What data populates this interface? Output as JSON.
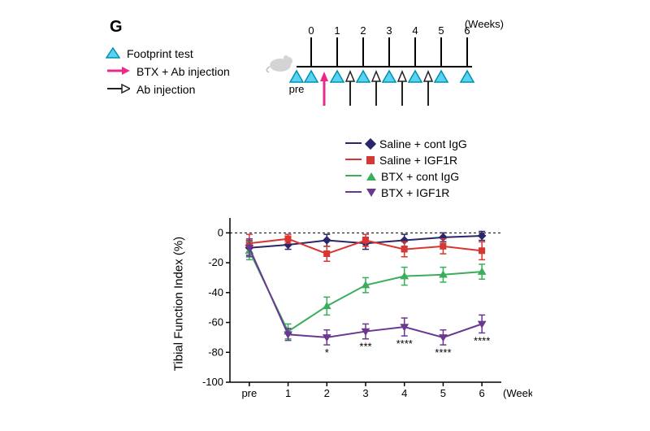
{
  "panel": {
    "label": "G",
    "fontsize": 20
  },
  "top_legend": {
    "rows": [
      {
        "icon": "triangle",
        "fill": "#5ad3f0",
        "stroke": "#0092b4",
        "text": "Footprint test"
      },
      {
        "icon": "arrow",
        "fill": "#ea2a8a",
        "stroke": "#ea2a8a",
        "text": "BTX + Ab injection"
      },
      {
        "icon": "arrow",
        "fill": "#ffffff",
        "stroke": "#222222",
        "text": "Ab injection"
      }
    ]
  },
  "timeline": {
    "weeks_label": "(Weeks)",
    "x": [
      0,
      1,
      2,
      3,
      4,
      5,
      6
    ],
    "tick_labels": [
      "0",
      "1",
      "2",
      "3",
      "4",
      "5",
      "6"
    ],
    "pre_label": "pre",
    "footprint_idx": [
      -1,
      0,
      1,
      2,
      3,
      4,
      5,
      6
    ],
    "btx_ab_idx": [
      0.5
    ],
    "ab_idx": [
      1.5,
      2.5,
      3.5,
      4.5
    ]
  },
  "series_legend": [
    {
      "marker": "diamond",
      "color": "#29266a",
      "label": "Saline + cont IgG"
    },
    {
      "marker": "square",
      "color": "#d83631",
      "label": "Saline + IGF1R"
    },
    {
      "marker": "tri_up",
      "color": "#3aae5a",
      "label": "BTX + cont IgG"
    },
    {
      "marker": "tri_down",
      "color": "#6a3890",
      "label": "BTX + IGF1R"
    }
  ],
  "chart": {
    "type": "line",
    "background_color": "#ffffff",
    "axis_color": "#000000",
    "tick_fontsize": 13,
    "label_fontsize": 15,
    "line_width": 2,
    "marker_size": 7,
    "error_cap": 4,
    "ylim": [
      -100,
      10
    ],
    "ytick_step": 20,
    "ytick_labels": [
      "0",
      "-20",
      "-40",
      "-60",
      "-80",
      "-100"
    ],
    "yticks": [
      0,
      -20,
      -40,
      -60,
      -80,
      -100
    ],
    "x_categories": [
      "pre",
      "1",
      "2",
      "3",
      "4",
      "5",
      "6"
    ],
    "x_label": "(Weeks)",
    "y_label": "Tibial Function Index (%)",
    "zero_line": {
      "color": "#000000",
      "dash": "3,3"
    },
    "series": [
      {
        "name": "Saline + cont IgG",
        "color": "#29266a",
        "marker": "diamond",
        "y": [
          -10,
          -8,
          -5,
          -7,
          -5,
          -3,
          -2
        ],
        "err": [
          5,
          3,
          4,
          4,
          4,
          3,
          3
        ]
      },
      {
        "name": "Saline + IGF1R",
        "color": "#d83631",
        "marker": "square",
        "y": [
          -7,
          -4,
          -14,
          -5,
          -11,
          -9,
          -12
        ],
        "err": [
          6,
          3,
          5,
          4,
          5,
          5,
          6
        ]
      },
      {
        "name": "BTX + cont IgG",
        "color": "#3aae5a",
        "marker": "tri_up",
        "y": [
          -12,
          -66,
          -49,
          -35,
          -29,
          -28,
          -26
        ],
        "err": [
          6,
          5,
          6,
          5,
          6,
          5,
          5
        ]
      },
      {
        "name": "BTX + IGF1R",
        "color": "#6a3890",
        "marker": "tri_down",
        "y": [
          -10,
          -68,
          -70,
          -66,
          -63,
          -70,
          -61
        ],
        "err": [
          6,
          4,
          5,
          5,
          6,
          5,
          6
        ]
      }
    ],
    "significance": [
      {
        "x_idx": 2,
        "label": "*"
      },
      {
        "x_idx": 3,
        "label": "***"
      },
      {
        "x_idx": 4,
        "label": "****"
      },
      {
        "x_idx": 5,
        "label": "****"
      },
      {
        "x_idx": 6,
        "label": "****"
      }
    ]
  }
}
